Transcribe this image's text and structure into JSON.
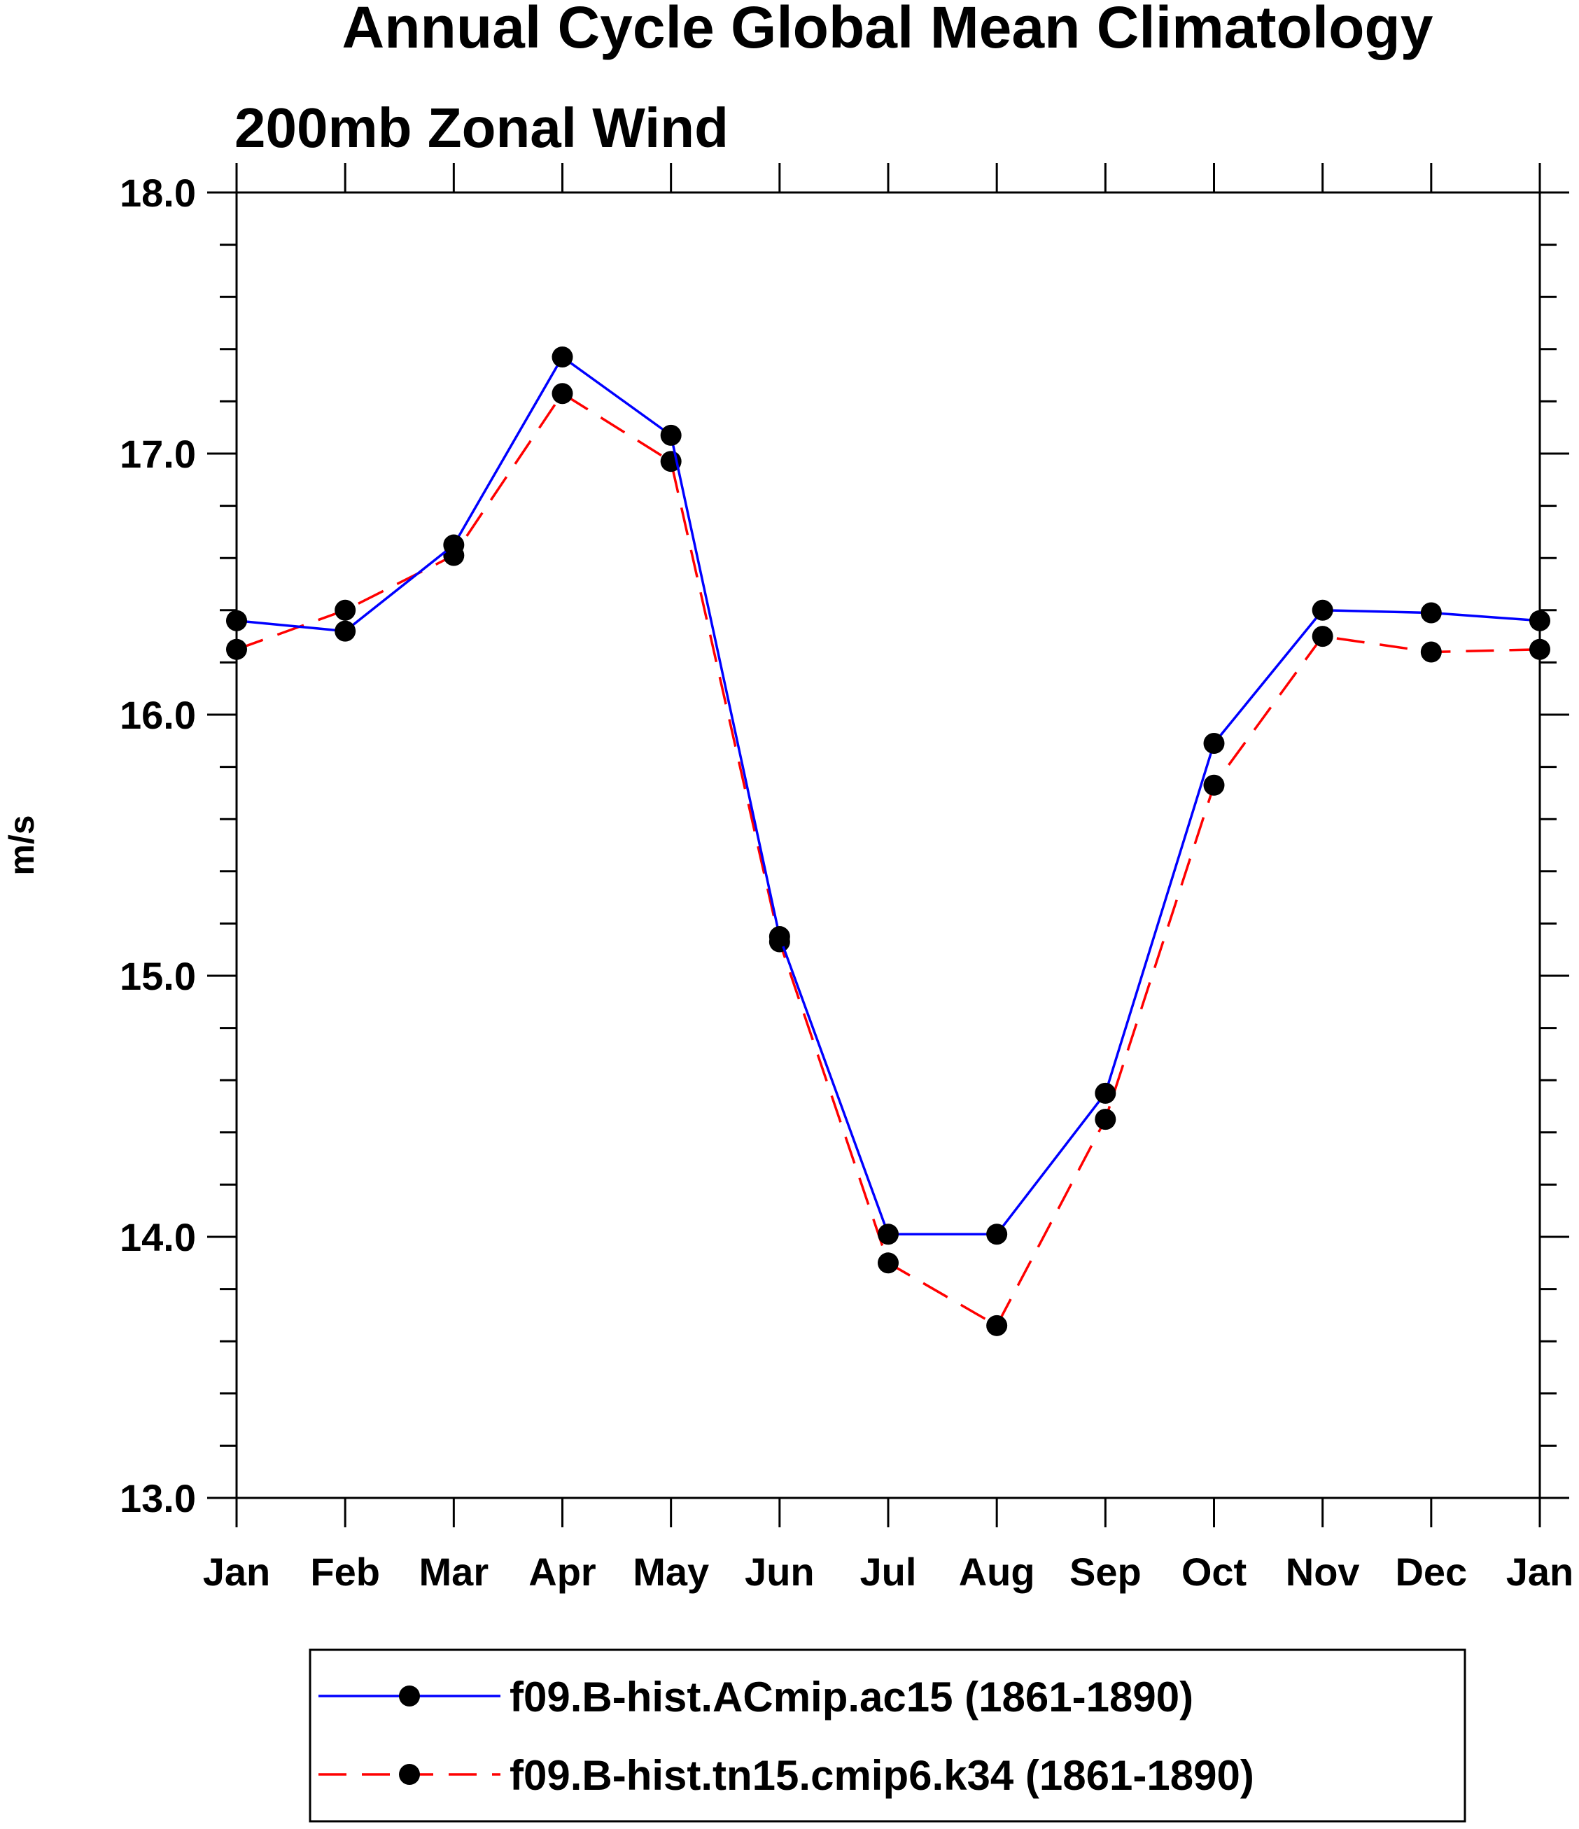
{
  "chart_data": {
    "type": "line",
    "title": "Annual Cycle Global Mean Climatology",
    "subtitle": "200mb Zonal Wind",
    "xlabel": "",
    "ylabel": "m/s",
    "ylim": [
      13.0,
      18.0
    ],
    "y_ticks": [
      "13.0",
      "14.0",
      "15.0",
      "16.0",
      "17.0",
      "18.0"
    ],
    "categories": [
      "Jan",
      "Feb",
      "Mar",
      "Apr",
      "May",
      "Jun",
      "Jul",
      "Aug",
      "Sep",
      "Oct",
      "Nov",
      "Dec",
      "Jan"
    ],
    "grid": false,
    "legend_position": "bottom",
    "series": [
      {
        "name": "f09.B-hist.ACmip.ac15 (1861-1890)",
        "color": "#0000ff",
        "line_style": "solid",
        "marker": "filled-circle",
        "values": [
          16.36,
          16.32,
          16.65,
          17.37,
          17.07,
          15.15,
          14.01,
          14.01,
          14.55,
          15.89,
          16.4,
          16.39,
          16.36
        ]
      },
      {
        "name": "f09.B-hist.tn15.cmip6.k34 (1861-1890)",
        "color": "#ff0000",
        "line_style": "dashed",
        "marker": "filled-circle",
        "values": [
          16.25,
          16.4,
          16.61,
          17.23,
          16.97,
          15.13,
          13.9,
          13.66,
          14.45,
          15.73,
          16.3,
          16.24,
          16.25
        ]
      }
    ]
  }
}
